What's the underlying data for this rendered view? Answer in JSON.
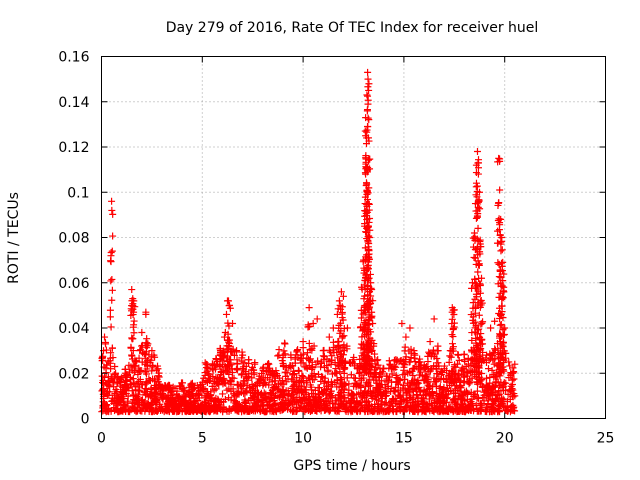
{
  "chart_data": {
    "type": "scatter",
    "title": "Day 279 of 2016, Rate Of TEC Index for receiver huel",
    "xlabel": "GPS time / hours",
    "ylabel": "ROTI / TECUs",
    "xlim": [
      0,
      25
    ],
    "ylim": [
      0,
      0.16
    ],
    "grid": true,
    "marker": "plus",
    "color": "#ff0000",
    "x_ticks": [
      {
        "value": 0,
        "label": "0"
      },
      {
        "value": 5,
        "label": "5"
      },
      {
        "value": 10,
        "label": "10"
      },
      {
        "value": 15,
        "label": "15"
      },
      {
        "value": 20,
        "label": "20"
      },
      {
        "value": 25,
        "label": "25"
      }
    ],
    "y_ticks": [
      {
        "value": 0,
        "label": "0"
      },
      {
        "value": 0.02,
        "label": "0.02"
      },
      {
        "value": 0.04,
        "label": "0.04"
      },
      {
        "value": 0.06,
        "label": "0.06"
      },
      {
        "value": 0.08,
        "label": "0.08"
      },
      {
        "value": 0.1,
        "label": "0.1"
      },
      {
        "value": 0.12,
        "label": "0.12"
      },
      {
        "value": 0.14,
        "label": "0.14"
      },
      {
        "value": 0.16,
        "label": "0.16"
      }
    ],
    "series": [
      {
        "name": "ROTI",
        "points": [
          [
            0.05,
            0.027
          ],
          [
            0.1,
            0.03
          ],
          [
            0.15,
            0.036
          ],
          [
            0.2,
            0.033
          ],
          [
            0.3,
            0.012
          ],
          [
            0.45,
            0.022
          ],
          [
            0.5,
            0.096
          ],
          [
            0.6,
            0.014
          ],
          [
            0.8,
            0.016
          ],
          [
            1.0,
            0.018
          ],
          [
            1.2,
            0.02
          ],
          [
            1.5,
            0.057
          ],
          [
            1.55,
            0.053
          ],
          [
            1.6,
            0.052
          ],
          [
            1.7,
            0.025
          ],
          [
            1.9,
            0.03
          ],
          [
            2.0,
            0.038
          ],
          [
            2.2,
            0.047
          ],
          [
            2.3,
            0.033
          ],
          [
            2.5,
            0.03
          ],
          [
            2.6,
            0.028
          ],
          [
            2.8,
            0.022
          ],
          [
            3.0,
            0.014
          ],
          [
            3.5,
            0.012
          ],
          [
            4.0,
            0.013
          ],
          [
            4.5,
            0.015
          ],
          [
            5.0,
            0.016
          ],
          [
            5.2,
            0.024
          ],
          [
            5.5,
            0.022
          ],
          [
            5.7,
            0.026
          ],
          [
            5.9,
            0.03
          ],
          [
            6.1,
            0.036
          ],
          [
            6.2,
            0.046
          ],
          [
            6.3,
            0.052
          ],
          [
            6.35,
            0.05
          ],
          [
            6.5,
            0.042
          ],
          [
            6.7,
            0.03
          ],
          [
            7.0,
            0.028
          ],
          [
            7.3,
            0.026
          ],
          [
            7.6,
            0.024
          ],
          [
            8.0,
            0.022
          ],
          [
            8.3,
            0.024
          ],
          [
            8.5,
            0.02
          ],
          [
            8.8,
            0.028
          ],
          [
            9.1,
            0.033
          ],
          [
            9.4,
            0.027
          ],
          [
            9.7,
            0.03
          ],
          [
            10.0,
            0.034
          ],
          [
            10.3,
            0.049
          ],
          [
            10.5,
            0.042
          ],
          [
            10.7,
            0.044
          ],
          [
            11.0,
            0.03
          ],
          [
            11.3,
            0.036
          ],
          [
            11.5,
            0.04
          ],
          [
            11.7,
            0.046
          ],
          [
            11.8,
            0.052
          ],
          [
            11.9,
            0.056
          ],
          [
            12.0,
            0.054
          ],
          [
            12.2,
            0.04
          ],
          [
            12.5,
            0.026
          ],
          [
            12.7,
            0.022
          ],
          [
            12.9,
            0.058
          ],
          [
            13.0,
            0.07
          ],
          [
            13.05,
            0.085
          ],
          [
            13.1,
            0.108
          ],
          [
            13.15,
            0.124
          ],
          [
            13.2,
            0.153
          ],
          [
            13.22,
            0.15
          ],
          [
            13.25,
            0.145
          ],
          [
            13.1,
            0.133
          ],
          [
            13.2,
            0.11
          ],
          [
            13.25,
            0.095
          ],
          [
            13.3,
            0.08
          ],
          [
            13.35,
            0.06
          ],
          [
            13.4,
            0.057
          ],
          [
            13.45,
            0.042
          ],
          [
            13.5,
            0.032
          ],
          [
            13.7,
            0.026
          ],
          [
            14.0,
            0.022
          ],
          [
            14.3,
            0.024
          ],
          [
            14.6,
            0.026
          ],
          [
            14.9,
            0.042
          ],
          [
            15.1,
            0.036
          ],
          [
            15.3,
            0.04
          ],
          [
            15.5,
            0.03
          ],
          [
            15.8,
            0.025
          ],
          [
            16.0,
            0.022
          ],
          [
            16.3,
            0.034
          ],
          [
            16.5,
            0.044
          ],
          [
            16.7,
            0.03
          ],
          [
            17.0,
            0.022
          ],
          [
            17.3,
            0.03
          ],
          [
            17.4,
            0.049
          ],
          [
            17.5,
            0.048
          ],
          [
            17.7,
            0.028
          ],
          [
            18.0,
            0.026
          ],
          [
            18.2,
            0.024
          ],
          [
            18.4,
            0.06
          ],
          [
            18.5,
            0.082
          ],
          [
            18.55,
            0.095
          ],
          [
            18.6,
            0.104
          ],
          [
            18.65,
            0.118
          ],
          [
            18.7,
            0.113
          ],
          [
            18.75,
            0.1
          ],
          [
            18.8,
            0.076
          ],
          [
            18.85,
            0.062
          ],
          [
            18.9,
            0.033
          ],
          [
            19.1,
            0.028
          ],
          [
            19.3,
            0.04
          ],
          [
            19.5,
            0.043
          ],
          [
            19.7,
            0.115
          ],
          [
            19.75,
            0.101
          ],
          [
            19.8,
            0.088
          ],
          [
            19.85,
            0.08
          ],
          [
            19.9,
            0.069
          ],
          [
            19.95,
            0.058
          ],
          [
            20.0,
            0.04
          ],
          [
            20.2,
            0.025
          ],
          [
            20.4,
            0.02
          ],
          [
            20.5,
            0.024
          ],
          [
            20.5,
            0.01
          ],
          [
            20.45,
            0.005
          ]
        ]
      }
    ]
  }
}
